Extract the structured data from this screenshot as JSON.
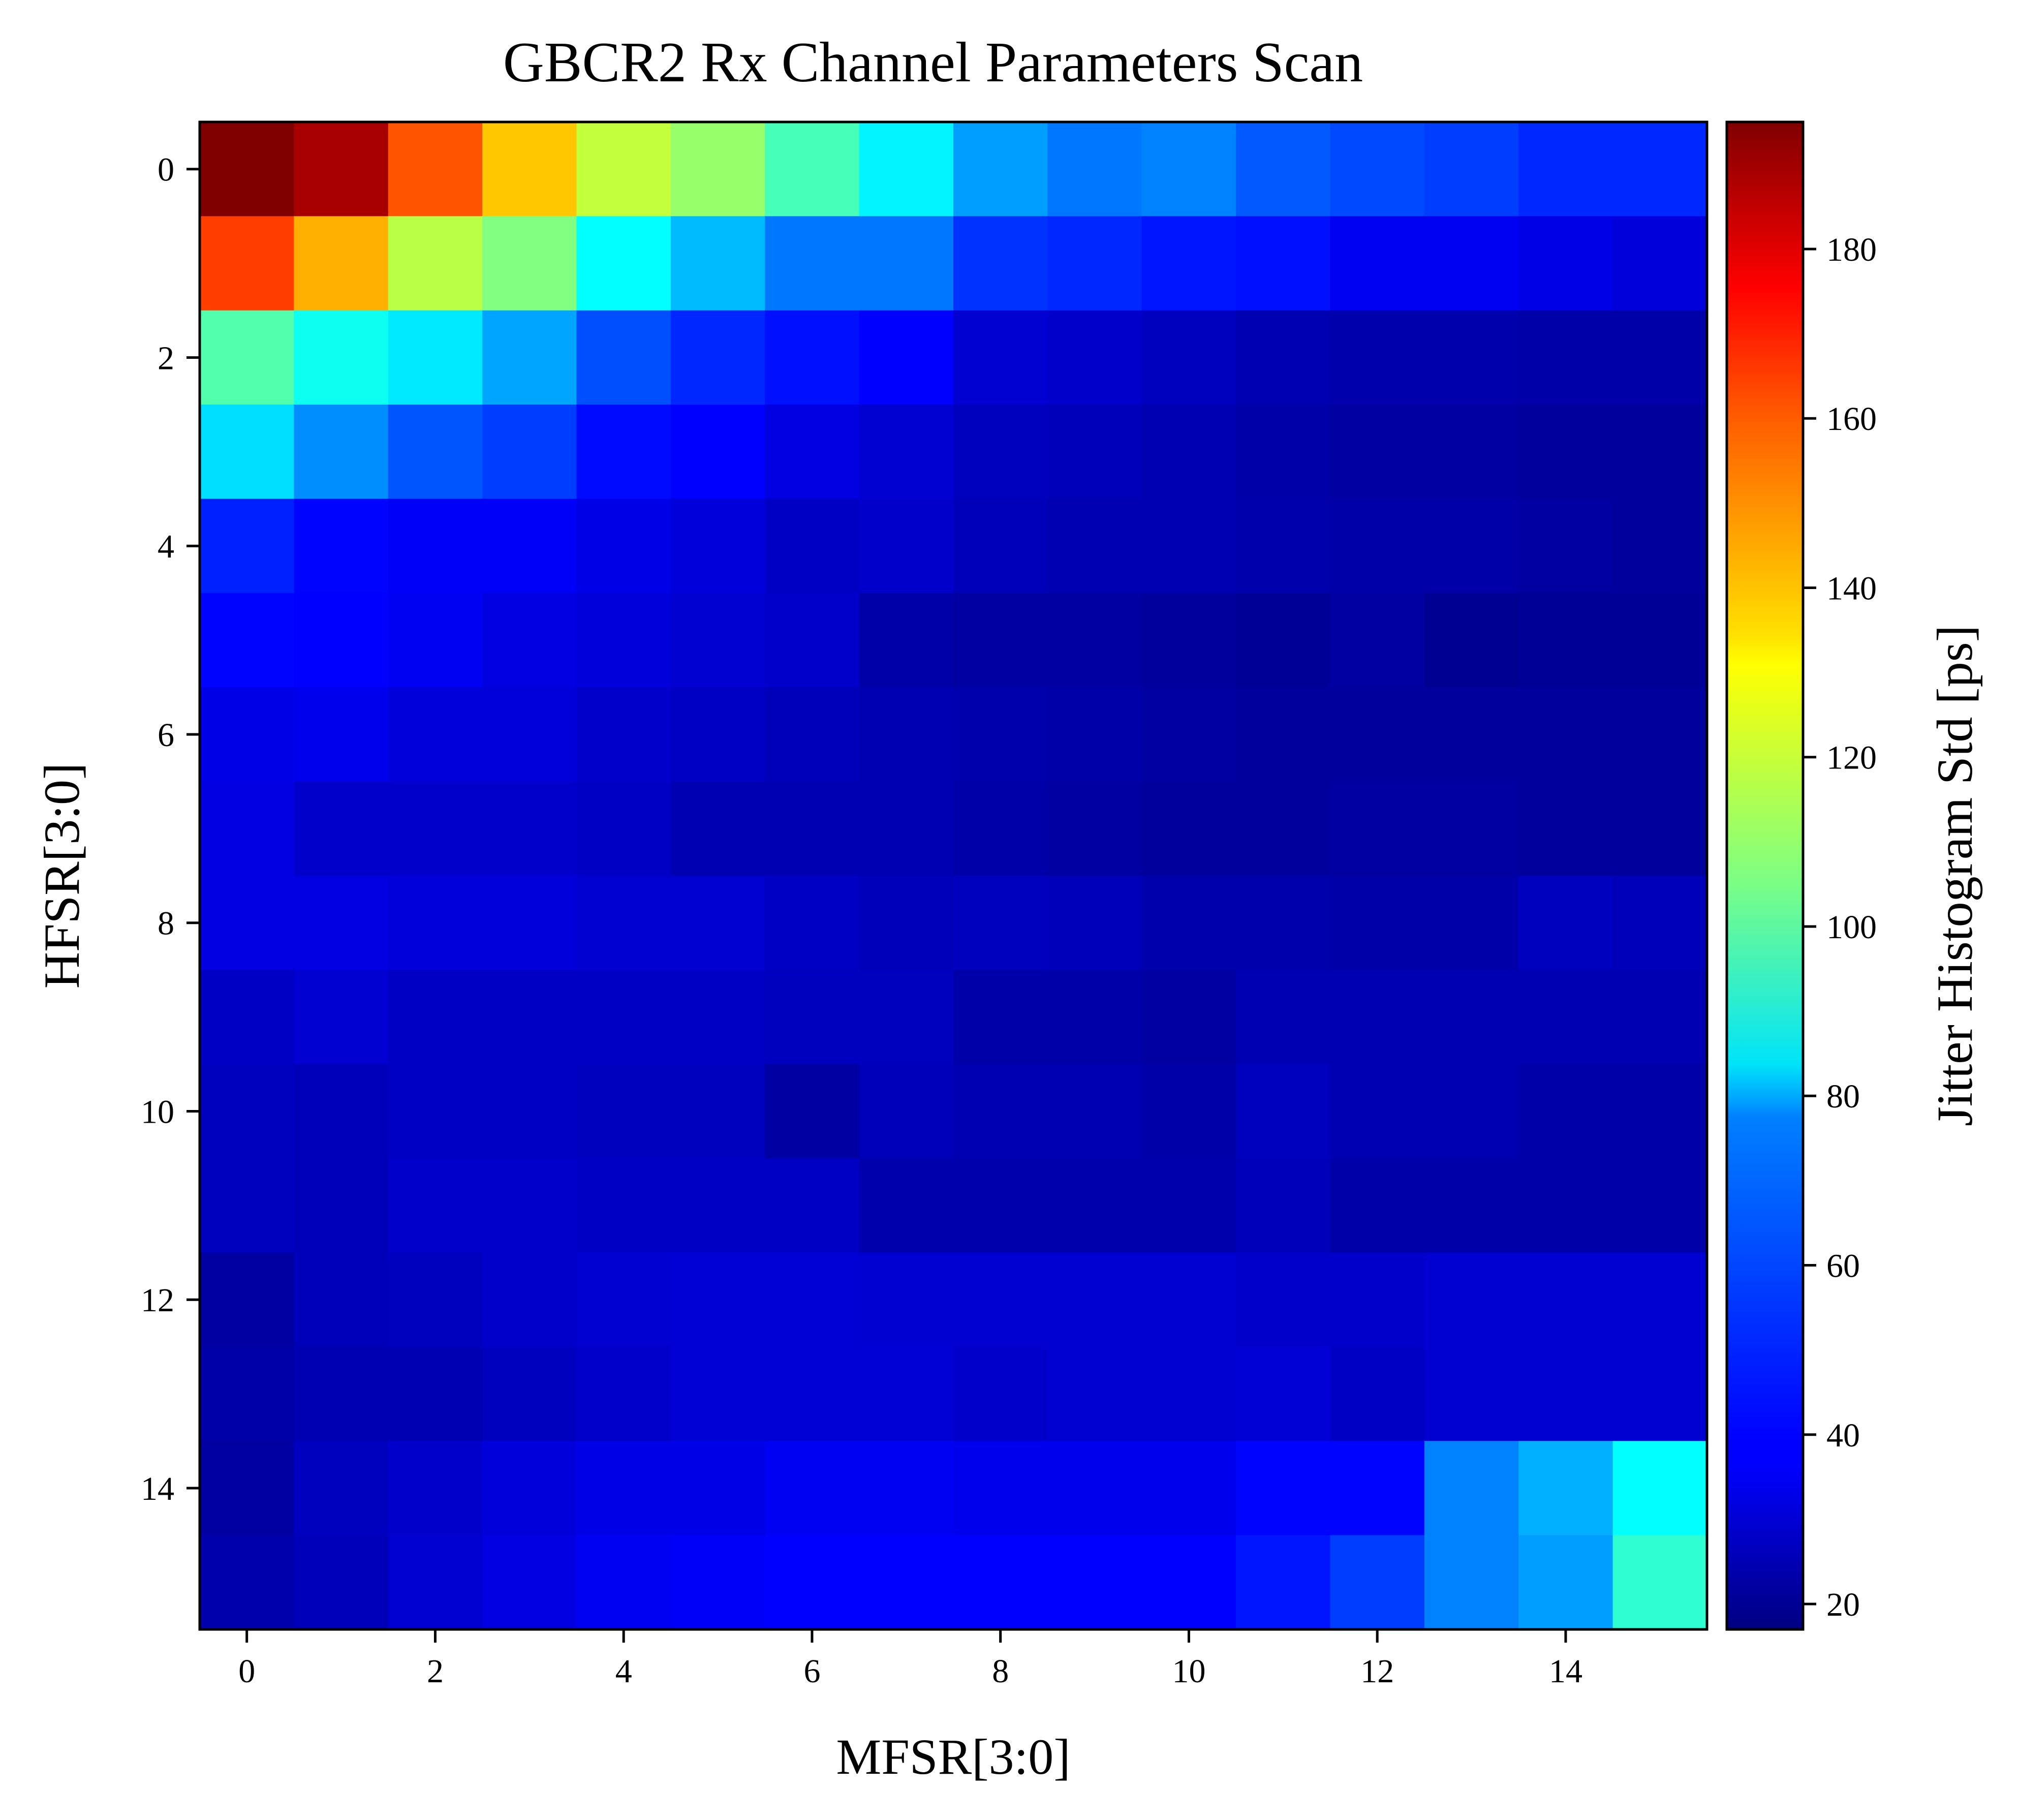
{
  "chart_data": {
    "type": "heatmap",
    "title": "GBCR2 Rx Channel Parameters Scan",
    "xlabel": "MFSR[3:0]",
    "ylabel": "HFSR[3:0]",
    "colorbar_label": "Jitter Histogram Std [ps]",
    "colormap": "jet",
    "vmin": 17,
    "vmax": 195,
    "x": [
      0,
      1,
      2,
      3,
      4,
      5,
      6,
      7,
      8,
      9,
      10,
      11,
      12,
      13,
      14,
      15
    ],
    "y": [
      0,
      1,
      2,
      3,
      4,
      5,
      6,
      7,
      8,
      9,
      10,
      11,
      12,
      13,
      14,
      15
    ],
    "xticks": [
      "0",
      "2",
      "4",
      "6",
      "8",
      "10",
      "12",
      "14"
    ],
    "yticks": [
      "0",
      "2",
      "4",
      "6",
      "8",
      "10",
      "12",
      "14"
    ],
    "colorbar_ticks": [
      "20",
      "40",
      "60",
      "80",
      "100",
      "120",
      "140",
      "160",
      "180"
    ],
    "values": [
      [
        195,
        188,
        158,
        138,
        118,
        110,
        96,
        82,
        67,
        60,
        62,
        55,
        52,
        50,
        46,
        46
      ],
      [
        162,
        142,
        116,
        106,
        84,
        72,
        60,
        60,
        48,
        46,
        43,
        42,
        37,
        37,
        35,
        33
      ],
      [
        98,
        86,
        80,
        68,
        53,
        46,
        42,
        39,
        31,
        30,
        28,
        26,
        25,
        25,
        24,
        24
      ],
      [
        78,
        64,
        54,
        50,
        41,
        39,
        34,
        31,
        28,
        27,
        26,
        24,
        23,
        23,
        22,
        22
      ],
      [
        45,
        40,
        38,
        38,
        35,
        33,
        29,
        30,
        27,
        26,
        26,
        25,
        24,
        24,
        23,
        22
      ],
      [
        40,
        39,
        37,
        34,
        33,
        31,
        30,
        24,
        23,
        23,
        22,
        21,
        23,
        20,
        21,
        21
      ],
      [
        35,
        36,
        33,
        33,
        30,
        29,
        27,
        26,
        25,
        24,
        23,
        22,
        22,
        22,
        22,
        22
      ],
      [
        34,
        30,
        30,
        30,
        29,
        26,
        26,
        26,
        24,
        23,
        22,
        22,
        23,
        23,
        22,
        22
      ],
      [
        34,
        34,
        33,
        33,
        31,
        31,
        29,
        27,
        28,
        27,
        25,
        25,
        24,
        24,
        28,
        27
      ],
      [
        29,
        31,
        29,
        29,
        29,
        29,
        28,
        28,
        24,
        24,
        23,
        26,
        26,
        26,
        26,
        26
      ],
      [
        28,
        27,
        29,
        29,
        28,
        28,
        23,
        27,
        26,
        26,
        24,
        28,
        26,
        26,
        24,
        24
      ],
      [
        28,
        27,
        30,
        30,
        29,
        29,
        29,
        25,
        25,
        25,
        25,
        27,
        24,
        24,
        24,
        24
      ],
      [
        23,
        27,
        28,
        30,
        31,
        32,
        32,
        31,
        31,
        31,
        31,
        30,
        30,
        31,
        31,
        31
      ],
      [
        24,
        26,
        26,
        28,
        30,
        32,
        32,
        32,
        30,
        31,
        31,
        32,
        29,
        31,
        31,
        31
      ],
      [
        23,
        28,
        30,
        33,
        35,
        35,
        37,
        37,
        36,
        36,
        36,
        40,
        40,
        62,
        70,
        84
      ],
      [
        25,
        27,
        31,
        34,
        37,
        38,
        39,
        39,
        39,
        39,
        39,
        43,
        50,
        62,
        67,
        92
      ]
    ]
  }
}
